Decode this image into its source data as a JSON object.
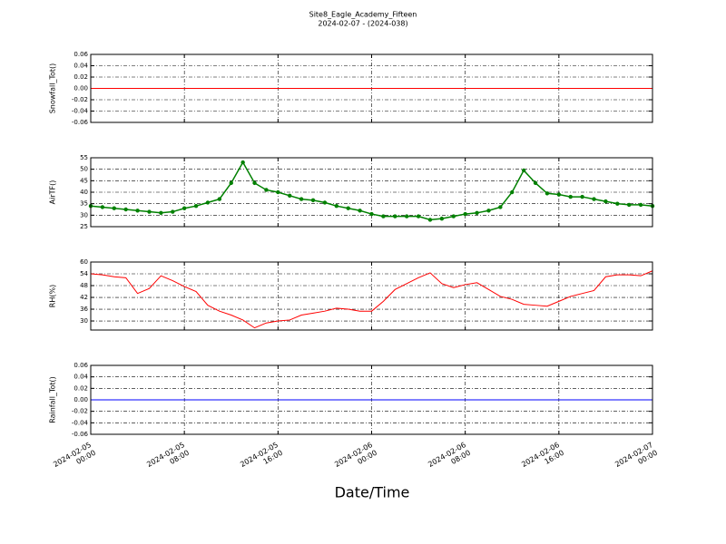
{
  "title": "Site8_Eagle_Academy_Fifteen",
  "subtitle": "2024-02-07 - (2024-038)",
  "grid": true,
  "x_axis": {
    "label": "Date/Time",
    "xlim": [
      "2024-02-05 00:00",
      "2024-02-07 00:00"
    ],
    "xticks": [
      {
        "value": "2024-02-05 00:00",
        "label": "2024-02-05\n00:00"
      },
      {
        "value": "2024-02-05 08:00",
        "label": "2024-02-05\n08:00"
      },
      {
        "value": "2024-02-05 16:00",
        "label": "2024-02-05\n16:00"
      },
      {
        "value": "2024-02-06 00:00",
        "label": "2024-02-06\n00:00"
      },
      {
        "value": "2024-02-06 08:00",
        "label": "2024-02-06\n08:00"
      },
      {
        "value": "2024-02-06 16:00",
        "label": "2024-02-06\n16:00"
      },
      {
        "value": "2024-02-07 00:00",
        "label": "2024-02-07\n00:00"
      }
    ]
  },
  "chart_data": [
    {
      "type": "line",
      "ylabel": "Snowfall_Tot()",
      "x": [
        "2024-02-05 00:00",
        "2024-02-07 00:00"
      ],
      "values": [
        0,
        0
      ],
      "color": "#ff0000",
      "marker": false,
      "ylim": [
        -0.06,
        0.06
      ],
      "yticks": [
        -0.06,
        -0.04,
        -0.02,
        {
          "value": 0,
          "label": "0.00"
        },
        0.02,
        0.04,
        0.06
      ]
    },
    {
      "type": "line",
      "ylabel": "AirTF()",
      "x": [
        "2024-02-05 00:00",
        "2024-02-05 01:00",
        "2024-02-05 02:00",
        "2024-02-05 03:00",
        "2024-02-05 04:00",
        "2024-02-05 05:00",
        "2024-02-05 06:00",
        "2024-02-05 07:00",
        "2024-02-05 08:00",
        "2024-02-05 09:00",
        "2024-02-05 10:00",
        "2024-02-05 11:00",
        "2024-02-05 12:00",
        "2024-02-05 13:00",
        "2024-02-05 14:00",
        "2024-02-05 15:00",
        "2024-02-05 16:00",
        "2024-02-05 17:00",
        "2024-02-05 18:00",
        "2024-02-05 19:00",
        "2024-02-05 20:00",
        "2024-02-05 21:00",
        "2024-02-05 22:00",
        "2024-02-05 23:00",
        "2024-02-06 00:00",
        "2024-02-06 01:00",
        "2024-02-06 02:00",
        "2024-02-06 03:00",
        "2024-02-06 04:00",
        "2024-02-06 05:00",
        "2024-02-06 06:00",
        "2024-02-06 07:00",
        "2024-02-06 08:00",
        "2024-02-06 09:00",
        "2024-02-06 10:00",
        "2024-02-06 11:00",
        "2024-02-06 12:00",
        "2024-02-06 13:00",
        "2024-02-06 14:00",
        "2024-02-06 15:00",
        "2024-02-06 16:00",
        "2024-02-06 17:00",
        "2024-02-06 18:00",
        "2024-02-06 19:00",
        "2024-02-06 20:00",
        "2024-02-06 21:00",
        "2024-02-06 22:00",
        "2024-02-06 23:00",
        "2024-02-07 00:00"
      ],
      "values": [
        34,
        33.5,
        33,
        32.5,
        32,
        31.5,
        31,
        31.5,
        33,
        34,
        35.5,
        37,
        44,
        53,
        44,
        41,
        40,
        38.5,
        37,
        36.5,
        35.5,
        34,
        33,
        32,
        30.5,
        29.5,
        29.5,
        29.5,
        29.5,
        28,
        28.5,
        29.5,
        30.5,
        31,
        32,
        33.5,
        40,
        49.5,
        44,
        39.5,
        39,
        38,
        38,
        37,
        36,
        35,
        34.5,
        34.5,
        34
      ],
      "color": "#008000",
      "marker": true,
      "ylim": [
        25,
        55
      ],
      "yticks": [
        25,
        30,
        35,
        40,
        45,
        50,
        55
      ]
    },
    {
      "type": "line",
      "ylabel": "RH(%)",
      "x": [
        "2024-02-05 00:00",
        "2024-02-05 01:00",
        "2024-02-05 02:00",
        "2024-02-05 03:00",
        "2024-02-05 04:00",
        "2024-02-05 05:00",
        "2024-02-05 06:00",
        "2024-02-05 07:00",
        "2024-02-05 08:00",
        "2024-02-05 09:00",
        "2024-02-05 10:00",
        "2024-02-05 11:00",
        "2024-02-05 12:00",
        "2024-02-05 13:00",
        "2024-02-05 14:00",
        "2024-02-05 15:00",
        "2024-02-05 16:00",
        "2024-02-05 17:00",
        "2024-02-05 18:00",
        "2024-02-05 19:00",
        "2024-02-05 20:00",
        "2024-02-05 21:00",
        "2024-02-05 22:00",
        "2024-02-05 23:00",
        "2024-02-06 00:00",
        "2024-02-06 01:00",
        "2024-02-06 02:00",
        "2024-02-06 03:00",
        "2024-02-06 04:00",
        "2024-02-06 05:00",
        "2024-02-06 06:00",
        "2024-02-06 07:00",
        "2024-02-06 08:00",
        "2024-02-06 09:00",
        "2024-02-06 10:00",
        "2024-02-06 11:00",
        "2024-02-06 12:00",
        "2024-02-06 13:00",
        "2024-02-06 14:00",
        "2024-02-06 15:00",
        "2024-02-06 16:00",
        "2024-02-06 17:00",
        "2024-02-06 18:00",
        "2024-02-06 19:00",
        "2024-02-06 20:00",
        "2024-02-06 21:00",
        "2024-02-06 22:00",
        "2024-02-06 23:00",
        "2024-02-07 00:00"
      ],
      "values": [
        54,
        53.5,
        52.5,
        52,
        44,
        46.5,
        53,
        50.5,
        47.5,
        45,
        38,
        35,
        33,
        30.5,
        26.5,
        29,
        30,
        30.5,
        33,
        34,
        35,
        36.5,
        36,
        35,
        35,
        40,
        46,
        49,
        52,
        54.5,
        49,
        47,
        48.5,
        49.5,
        46,
        42.5,
        41,
        38.5,
        38,
        37.5,
        40,
        42.5,
        44,
        45.5,
        52.5,
        53.5,
        53.5,
        53,
        55.5
      ],
      "color": "#ff0000",
      "marker": false,
      "ylim": [
        25.4,
        60
      ],
      "yticks": [
        30,
        36,
        42,
        48,
        54,
        60
      ]
    },
    {
      "type": "line",
      "ylabel": "Rainfall_Tot()",
      "x": [
        "2024-02-05 00:00",
        "2024-02-07 00:00"
      ],
      "values": [
        0,
        0
      ],
      "color": "#0000ff",
      "marker": false,
      "ylim": [
        -0.06,
        0.06
      ],
      "yticks": [
        -0.06,
        -0.04,
        -0.02,
        {
          "value": 0,
          "label": "0.00"
        },
        0.02,
        0.04,
        0.06
      ]
    }
  ]
}
